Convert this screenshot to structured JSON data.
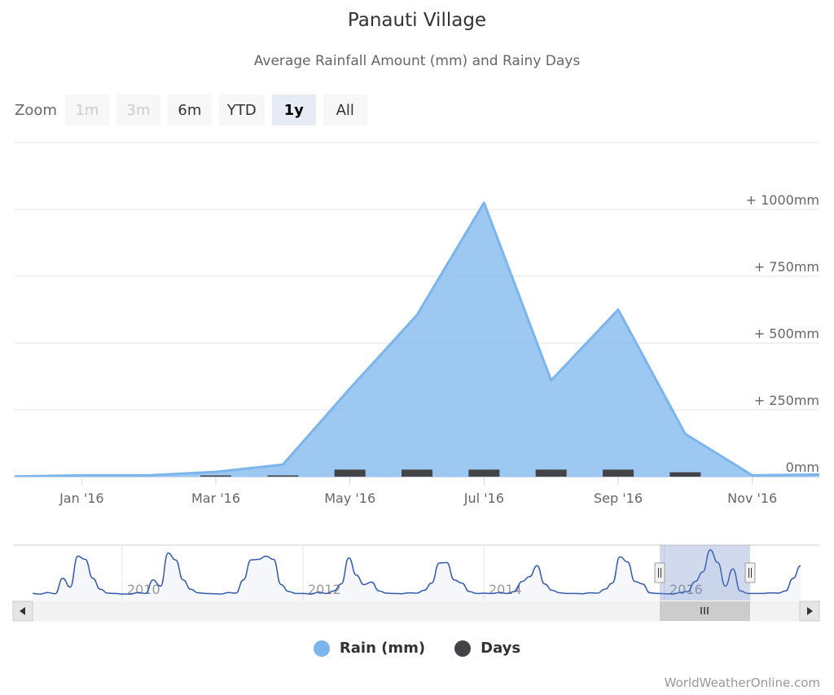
{
  "chart_data": {
    "type": "area",
    "title": "Panauti Village",
    "subtitle": "Average Rainfall Amount (mm) and Rainy Days",
    "zoom": {
      "label": "Zoom",
      "buttons": [
        {
          "label": "1m",
          "state": "disabled"
        },
        {
          "label": "3m",
          "state": "disabled"
        },
        {
          "label": "6m",
          "state": "normal"
        },
        {
          "label": "YTD",
          "state": "normal"
        },
        {
          "label": "1y",
          "state": "selected"
        },
        {
          "label": "All",
          "state": "normal"
        }
      ]
    },
    "x_tick_labels": [
      "Jan '16",
      "Mar '16",
      "May '16",
      "Jul '16",
      "Sep '16",
      "Nov '16"
    ],
    "y_tick_labels": [
      "0mm",
      "+ 250mm",
      "+ 500mm",
      "+ 750mm",
      "+ 1000mm"
    ],
    "y_ticks": [
      0,
      250,
      500,
      750,
      1000
    ],
    "ylim": [
      0,
      1250
    ],
    "x_range": [
      "2015-12",
      "2016-12"
    ],
    "series": [
      {
        "name": "Rain (mm)",
        "type": "area",
        "color": "#7cb5ec",
        "x": [
          "2015-12",
          "2016-01",
          "2016-02",
          "2016-03",
          "2016-04",
          "2016-05",
          "2016-06",
          "2016-07",
          "2016-08",
          "2016-09",
          "2016-10",
          "2016-11",
          "2016-12"
        ],
        "values": [
          1,
          5,
          5,
          18,
          45,
          330,
          605,
          1025,
          360,
          625,
          160,
          5,
          8
        ]
      },
      {
        "name": "Days",
        "type": "column",
        "color": "#434348",
        "x": [
          "2016-03",
          "2016-04",
          "2016-05",
          "2016-06",
          "2016-07",
          "2016-08",
          "2016-09",
          "2016-10"
        ],
        "values": [
          2,
          4,
          24,
          24,
          24,
          24,
          24,
          15
        ]
      }
    ],
    "navigator": {
      "year_labels": [
        "2010",
        "2012",
        "2014",
        "2016"
      ],
      "values": [
        12,
        10,
        15,
        11,
        60,
        32,
        130,
        120,
        60,
        25,
        13,
        12,
        10,
        10,
        15,
        12,
        55,
        35,
        140,
        118,
        55,
        25,
        14,
        12,
        11,
        10,
        15,
        13,
        55,
        118,
        120,
        130,
        120,
        40,
        18,
        12,
        12,
        10,
        16,
        12,
        20,
        42,
        125,
        70,
        40,
        48,
        20,
        13,
        12,
        11,
        14,
        13,
        22,
        45,
        108,
        110,
        55,
        45,
        18,
        12,
        13,
        12,
        15,
        12,
        18,
        50,
        65,
        100,
        42,
        22,
        14,
        12,
        12,
        11,
        14,
        13,
        25,
        45,
        128,
        112,
        50,
        42,
        14,
        12,
        11,
        10,
        15,
        18,
        50,
        80,
        150,
        110,
        35,
        90,
        20,
        12,
        12,
        12,
        14,
        13,
        20,
        60,
        100
      ]
    }
  },
  "legend": [
    {
      "label": "Rain (mm)",
      "color": "#7cb5ec"
    },
    {
      "label": "Days",
      "color": "#434348"
    }
  ],
  "credit": "WorldWeatherOnline.com"
}
